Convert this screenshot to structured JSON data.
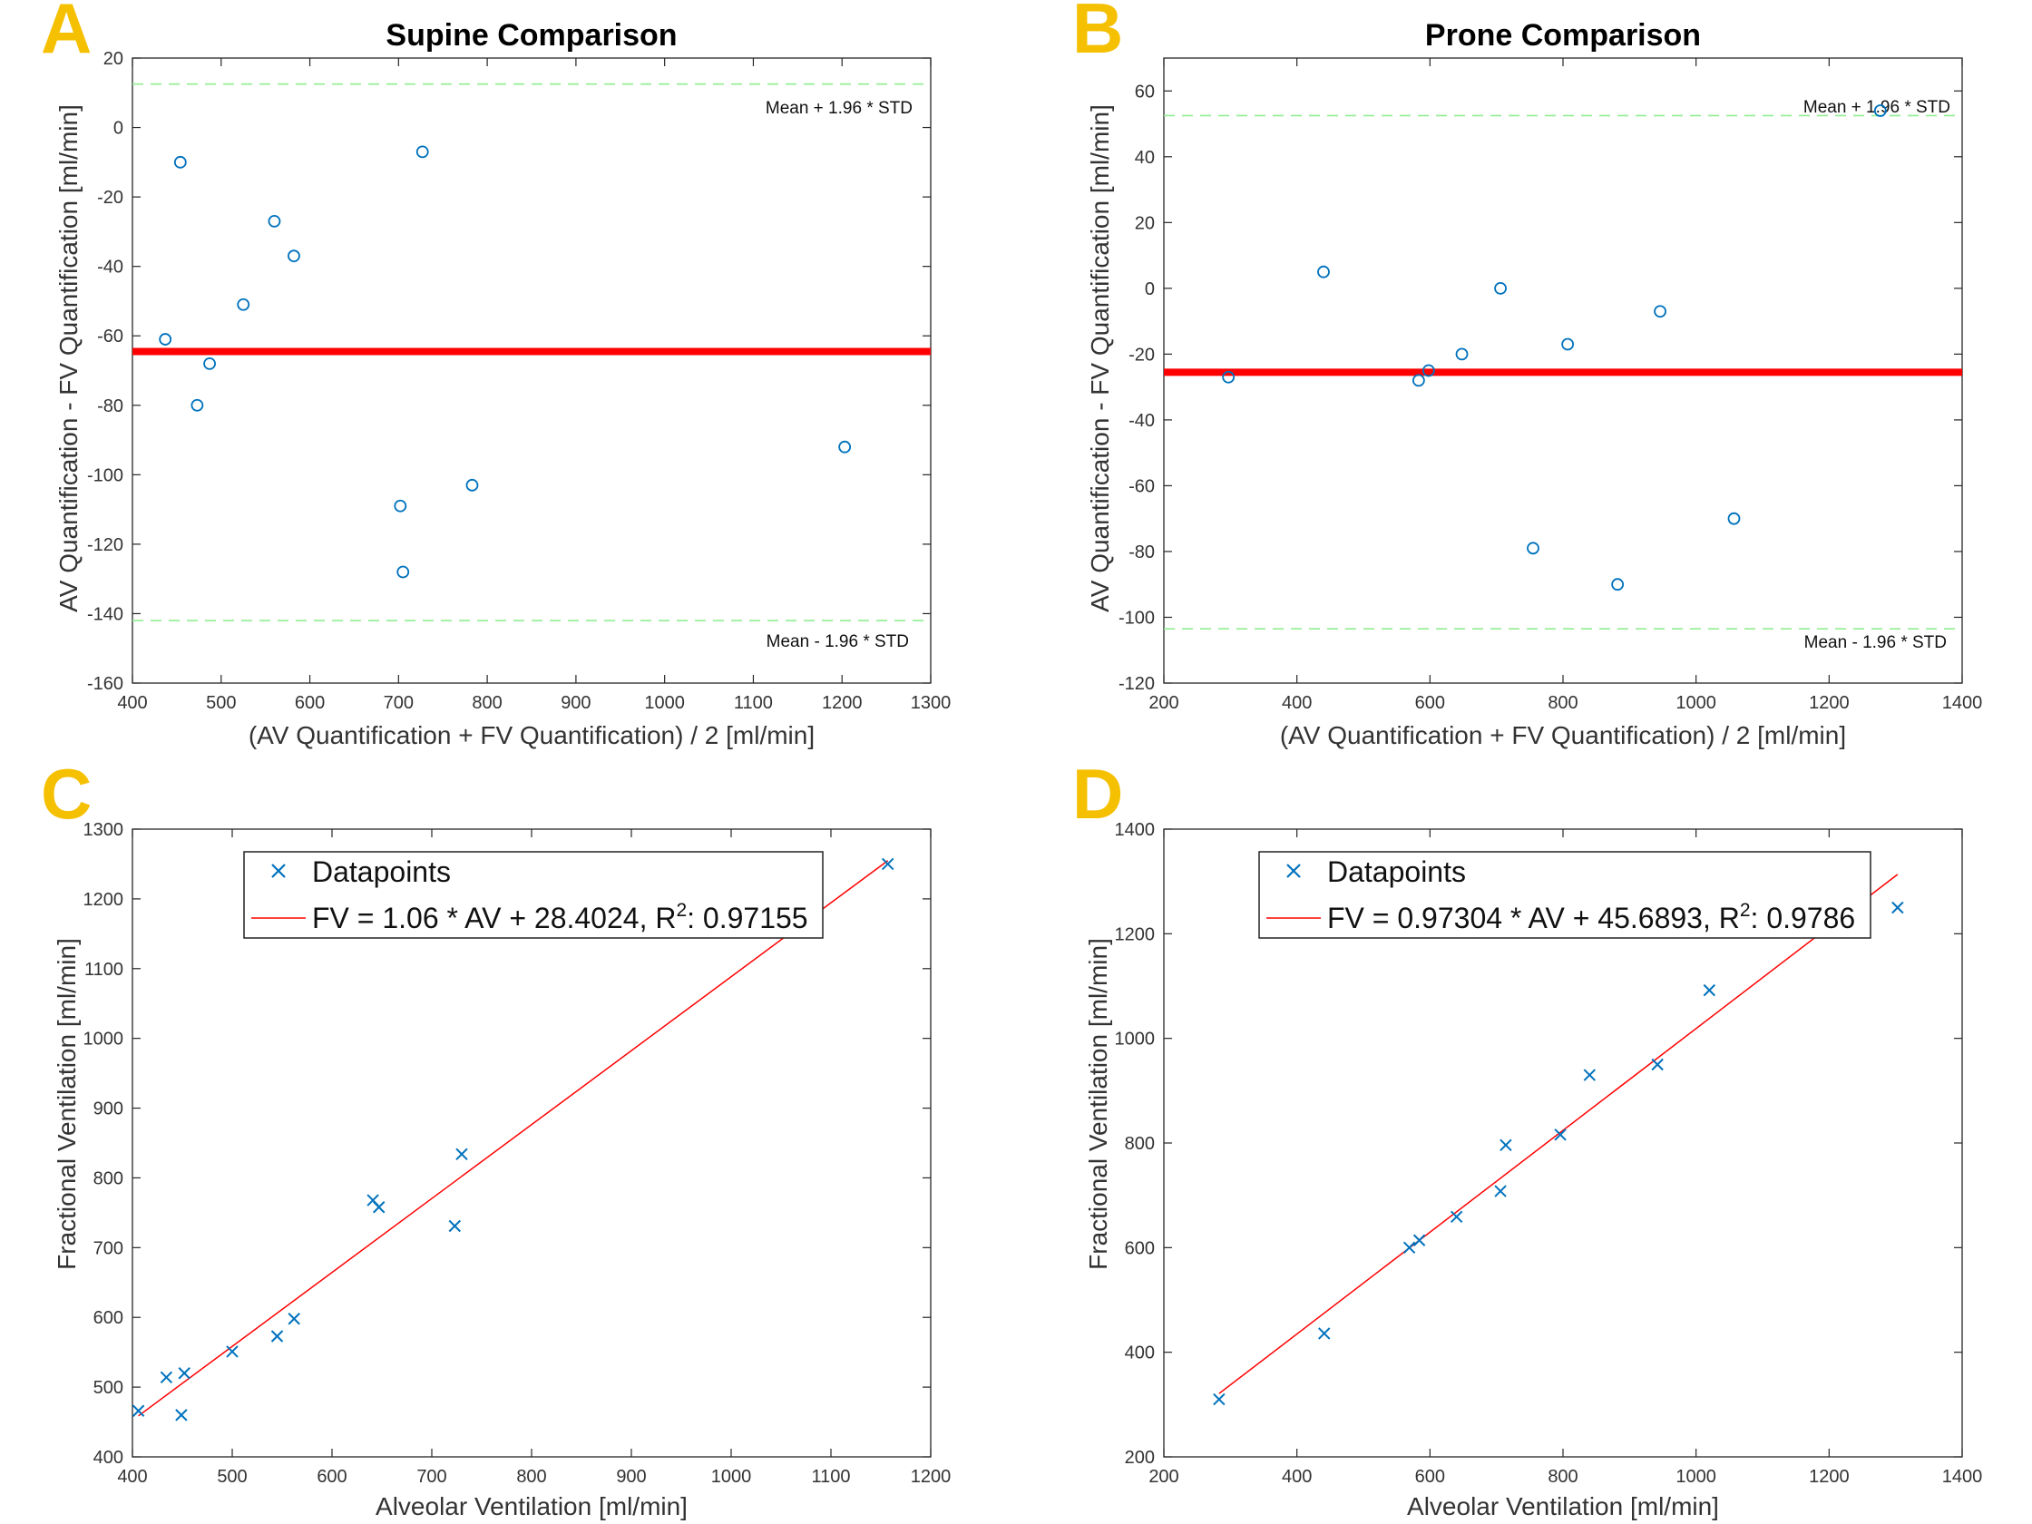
{
  "panels": [
    {
      "letter": "A",
      "title": "Supine Comparison",
      "xlabel": "(AV Quantification + FV Quantification) / 2  [ml/min]",
      "ylabel": "AV Quantification - FV Quantification  [ml/min]",
      "upper_label": "Mean + 1.96 * STD",
      "lower_label": "Mean - 1.96 * STD"
    },
    {
      "letter": "B",
      "title": "Prone Comparison",
      "xlabel": "(AV Quantification + FV Quantification) / 2  [ml/min]",
      "ylabel": "AV Quantification - FV Quantification  [ml/min]",
      "upper_label": "Mean + 1.96 * STD",
      "lower_label": "Mean - 1.96 * STD"
    },
    {
      "letter": "C",
      "title": "",
      "xlabel": "Alveolar Ventilation [ml/min]",
      "ylabel": "Fractional Ventilation [ml/min]",
      "legend_points": "Datapoints",
      "legend_fit_main": "FV = 1.06 * AV + 28.4024, R",
      "legend_fit_sup": "2",
      "legend_fit_tail": ": 0.97155"
    },
    {
      "letter": "D",
      "title": "",
      "xlabel": "Alveolar Ventilation [ml/min]",
      "ylabel": "Fractional Ventilation [ml/min]",
      "legend_points": "Datapoints",
      "legend_fit_main": "FV = 0.97304 * AV + 45.6893, R",
      "legend_fit_sup": "2",
      "legend_fit_tail": ": 0.9786"
    }
  ],
  "colors": {
    "points": "#0072BD",
    "mean_line": "#FF0000",
    "limit_lines": "#90EE90",
    "fit_line": "#FF0000",
    "panel_letter": "#F5C000"
  },
  "chart_data": [
    {
      "type": "scatter",
      "title": "Supine Comparison",
      "xlabel": "(AV Quantification + FV Quantification) / 2  [ml/min]",
      "ylabel": "AV Quantification - FV Quantification  [ml/min]",
      "xlim": [
        400,
        1300
      ],
      "ylim": [
        -160,
        20
      ],
      "xticks": [
        400,
        500,
        600,
        700,
        800,
        900,
        1000,
        1100,
        1200,
        1300
      ],
      "yticks": [
        -160,
        -140,
        -120,
        -100,
        -80,
        -60,
        -40,
        -20,
        0,
        20
      ],
      "mean": -64.5,
      "upper_limit": 12.5,
      "lower_limit": -142,
      "x": [
        437,
        454,
        473,
        487,
        525,
        560,
        582,
        702,
        705,
        727,
        783,
        1203
      ],
      "y": [
        -61,
        -10,
        -80,
        -68,
        -51,
        -27,
        -37,
        -109,
        -128,
        -7,
        -103,
        -92
      ]
    },
    {
      "type": "scatter",
      "title": "Prone Comparison",
      "xlabel": "(AV Quantification + FV Quantification) / 2  [ml/min]",
      "ylabel": "AV Quantification - FV Quantification  [ml/min]",
      "xlim": [
        200,
        1400
      ],
      "ylim": [
        -120,
        70
      ],
      "xticks": [
        200,
        400,
        600,
        800,
        1000,
        1200,
        1400
      ],
      "yticks": [
        -120,
        -100,
        -80,
        -60,
        -40,
        -20,
        0,
        20,
        40,
        60
      ],
      "mean": -25.5,
      "upper_limit": 52.5,
      "lower_limit": -103.5,
      "x": [
        297,
        440,
        583,
        598,
        648,
        706,
        755,
        807,
        882,
        946,
        1057,
        1277
      ],
      "y": [
        -27,
        5,
        -28,
        -25,
        -20,
        0,
        -79,
        -17,
        -90,
        -7,
        -70,
        54
      ]
    },
    {
      "type": "scatter",
      "xlabel": "Alveolar Ventilation [ml/min]",
      "ylabel": "Fractional Ventilation [ml/min]",
      "xlim": [
        400,
        1200
      ],
      "ylim": [
        400,
        1300
      ],
      "xticks": [
        400,
        500,
        600,
        700,
        800,
        900,
        1000,
        1100,
        1200
      ],
      "yticks": [
        400,
        500,
        600,
        700,
        800,
        900,
        1000,
        1100,
        1200,
        1300
      ],
      "series": [
        {
          "name": "Datapoints",
          "x": [
            406,
            434,
            449,
            452,
            500,
            545,
            562,
            641,
            647,
            723,
            730,
            1157
          ],
          "y": [
            466,
            514,
            460,
            520,
            551,
            573,
            598,
            768,
            758,
            731,
            834,
            1250
          ]
        },
        {
          "name": "FV = 1.06 * AV + 28.4024, R^2: 0.97155",
          "slope": 1.06,
          "intercept": 28.4024,
          "r_squared": 0.97155,
          "x_range": [
            406,
            1157
          ]
        }
      ]
    },
    {
      "type": "scatter",
      "xlabel": "Alveolar Ventilation [ml/min]",
      "ylabel": "Fractional Ventilation [ml/min]",
      "xlim": [
        200,
        1400
      ],
      "ylim": [
        200,
        1400
      ],
      "xticks": [
        200,
        400,
        600,
        800,
        1000,
        1200,
        1400
      ],
      "yticks": [
        200,
        400,
        600,
        800,
        1000,
        1200,
        1400
      ],
      "series": [
        {
          "name": "Datapoints",
          "x": [
            283,
            441,
            569,
            584,
            640,
            706,
            714,
            796,
            840,
            942,
            1020,
            1303
          ],
          "y": [
            310,
            436,
            600,
            614,
            659,
            708,
            796,
            816,
            930,
            950,
            1092,
            1250
          ]
        },
        {
          "name": "FV = 0.97304 * AV + 45.6893, R^2: 0.9786",
          "slope": 0.97304,
          "intercept": 45.6893,
          "r_squared": 0.9786,
          "x_range": [
            283,
            1303
          ]
        }
      ]
    }
  ]
}
